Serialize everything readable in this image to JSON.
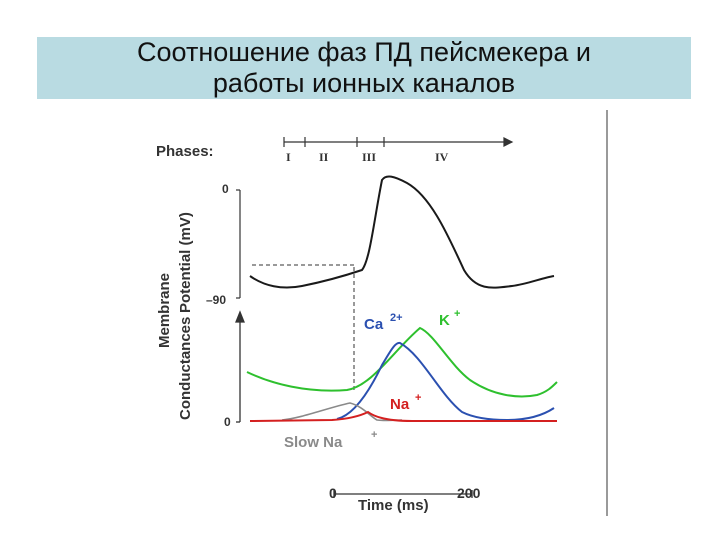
{
  "slide": {
    "title_line1": "Соотношение фаз ПД пейсмекера и",
    "title_line2": "работы ионных каналов"
  },
  "figure": {
    "phases_label": "Phases:",
    "phases": [
      "I",
      "II",
      "III",
      "IV"
    ],
    "membrane_axis": {
      "label_line1": "Membrane",
      "label_line2": "Potential (mV)",
      "tick_top": "0",
      "tick_bottom": "–90"
    },
    "conductance_axis": {
      "label": "Conductances",
      "tick_zero": "0"
    },
    "channels": [
      {
        "name": "Ca",
        "sup": "2+",
        "color": "#2b50b0"
      },
      {
        "name": "K",
        "sup": "+",
        "color": "#2ec02e"
      },
      {
        "name": "Na",
        "sup": "+",
        "color": "#d42020"
      },
      {
        "name": "Slow Na",
        "sup": "+",
        "color": "#8a8a8a"
      }
    ],
    "time_axis": {
      "tick_start": "0",
      "tick_end": "200",
      "label": "Time (ms)"
    }
  }
}
